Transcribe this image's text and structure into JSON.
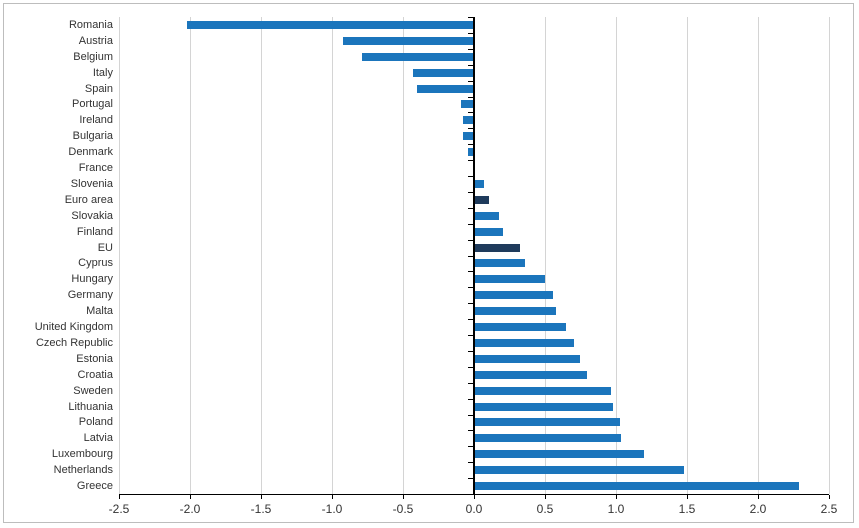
{
  "chart_data": {
    "type": "bar",
    "orientation": "horizontal",
    "title": "",
    "xlabel": "",
    "ylabel": "",
    "xlim": [
      -2.5,
      2.5
    ],
    "grid": true,
    "legend": "none",
    "x_tick_labels": [
      "-2.5",
      "-2.0",
      "-1.5",
      "-1.0",
      "-0.5",
      "0.0",
      "0.5",
      "1.0",
      "1.5",
      "2.0",
      "2.5"
    ],
    "x_tick_values": [
      -2.5,
      -2.0,
      -1.5,
      -1.0,
      -0.5,
      0.0,
      0.5,
      1.0,
      1.5,
      2.0,
      2.5
    ],
    "categories": [
      "Romania",
      "Austria",
      "Belgium",
      "Italy",
      "Spain",
      "Portugal",
      "Ireland",
      "Bulgaria",
      "Denmark",
      "France",
      "Slovenia",
      "Euro area",
      "Slovakia",
      "Finland",
      "EU",
      "Cyprus",
      "Hungary",
      "Germany",
      "Malta",
      "United Kingdom",
      "Czech Republic",
      "Estonia",
      "Croatia",
      "Sweden",
      "Lithuania",
      "Poland",
      "Latvia",
      "Luxembourg",
      "Netherlands",
      "Greece"
    ],
    "values": [
      -2.02,
      -0.92,
      -0.79,
      -0.43,
      -0.4,
      -0.09,
      -0.08,
      -0.08,
      -0.04,
      0.0,
      0.06,
      0.1,
      0.17,
      0.2,
      0.32,
      0.35,
      0.49,
      0.55,
      0.57,
      0.64,
      0.7,
      0.74,
      0.79,
      0.96,
      0.97,
      1.02,
      1.03,
      1.19,
      1.47,
      2.28
    ],
    "highlighted_categories": [
      "Euro area",
      "EU"
    ],
    "colors": {
      "bar": "#1b75bc",
      "bar_highlight": "#1f3b5c",
      "gridline": "#d4d4d4",
      "axis": "#000000",
      "figure_border": "#bdbdbd",
      "label": "#333333",
      "background": "#ffffff"
    }
  }
}
